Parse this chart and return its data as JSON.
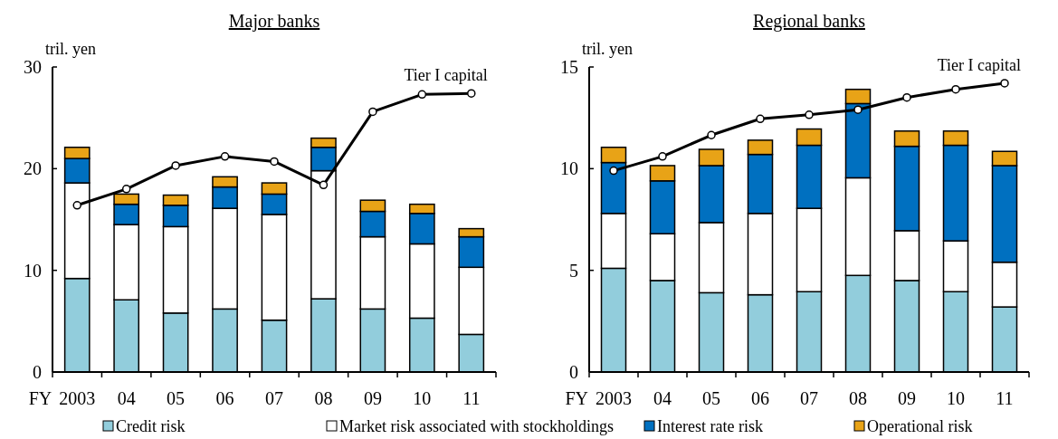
{
  "chart_data": [
    {
      "type": "bar",
      "title": "Major banks",
      "ylabel": "tril. yen",
      "xlabel": "FY",
      "categories": [
        "2003",
        "04",
        "05",
        "06",
        "07",
        "08",
        "09",
        "10",
        "11"
      ],
      "stacked": true,
      "ylim": [
        0,
        30
      ],
      "yticks": [
        0,
        10,
        20,
        30
      ],
      "grid": false,
      "legend": "bottom",
      "marker": "circle",
      "series": [
        {
          "name": "Credit risk",
          "color": "#92cddc",
          "values": [
            9.2,
            7.1,
            5.8,
            6.2,
            5.1,
            7.2,
            6.2,
            5.3,
            3.7
          ]
        },
        {
          "name": "Market risk associated with stockholdings",
          "color": "#ffffff",
          "values": [
            9.4,
            7.4,
            8.5,
            9.9,
            10.4,
            12.6,
            7.1,
            7.3,
            6.6
          ]
        },
        {
          "name": "Interest rate risk",
          "color": "#0070c0",
          "values": [
            2.4,
            2.0,
            2.1,
            2.1,
            2.0,
            2.3,
            2.5,
            3.0,
            3.0
          ]
        },
        {
          "name": "Operational risk",
          "color": "#e8a317",
          "values": [
            1.1,
            1.0,
            1.0,
            1.0,
            1.1,
            0.9,
            1.1,
            0.9,
            0.8
          ]
        },
        {
          "name": "Tier I capital",
          "type": "line",
          "color": "#000000",
          "values": [
            16.4,
            18.0,
            20.3,
            21.2,
            20.7,
            18.4,
            25.6,
            27.3,
            27.4
          ]
        }
      ]
    },
    {
      "type": "bar",
      "title": "Regional banks",
      "ylabel": "tril. yen",
      "xlabel": "FY",
      "categories": [
        "2003",
        "04",
        "05",
        "06",
        "07",
        "08",
        "09",
        "10",
        "11"
      ],
      "stacked": true,
      "ylim": [
        0,
        15
      ],
      "yticks": [
        0,
        5,
        10,
        15
      ],
      "grid": false,
      "marker": "circle",
      "series": [
        {
          "color": "#92cddc",
          "values": [
            5.1,
            4.5,
            3.9,
            3.8,
            3.95,
            4.75,
            4.5,
            3.95,
            3.2
          ]
        },
        {
          "color": "#ffffff",
          "values": [
            2.7,
            2.3,
            3.45,
            4.0,
            4.1,
            4.8,
            2.45,
            2.5,
            2.2
          ]
        },
        {
          "color": "#0070c0",
          "values": [
            2.5,
            2.6,
            2.8,
            2.9,
            3.1,
            3.65,
            4.15,
            4.7,
            4.75
          ]
        },
        {
          "color": "#e8a317",
          "values": [
            0.75,
            0.75,
            0.8,
            0.7,
            0.8,
            0.7,
            0.75,
            0.7,
            0.7
          ]
        },
        {
          "name": "Tier I capital",
          "type": "line",
          "color": "#000000",
          "values": [
            9.9,
            10.6,
            11.65,
            12.45,
            12.65,
            12.9,
            13.5,
            13.9,
            14.2
          ]
        }
      ]
    }
  ]
}
